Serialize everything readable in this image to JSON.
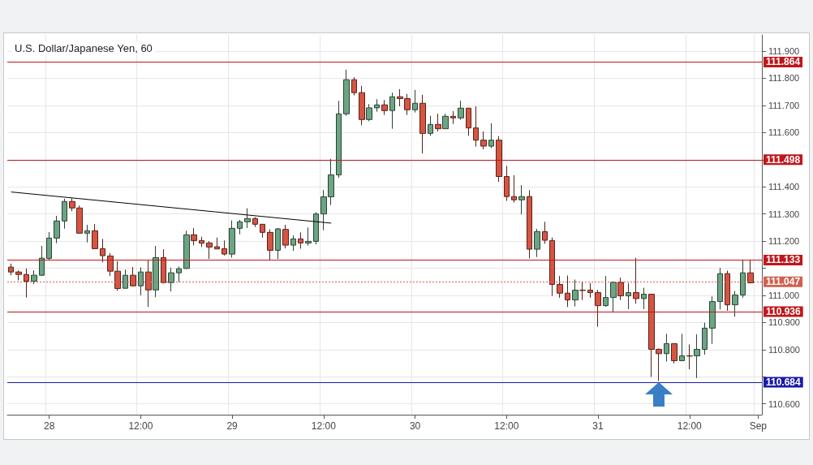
{
  "chart_data": {
    "type": "candlestick",
    "title": "U.S. Dollar/Japanese Yen, 60",
    "categories": [
      null,
      null,
      null,
      null,
      null,
      "28",
      null,
      null,
      null,
      null,
      null,
      null,
      null,
      null,
      null,
      null,
      null,
      "12:00",
      null,
      null,
      null,
      null,
      null,
      null,
      null,
      null,
      null,
      null,
      null,
      "29",
      null,
      null,
      null,
      null,
      null,
      null,
      null,
      null,
      null,
      null,
      null,
      "12:00",
      null,
      null,
      null,
      null,
      null,
      null,
      null,
      null,
      null,
      null,
      null,
      "30",
      null,
      null,
      null,
      null,
      null,
      null,
      null,
      null,
      null,
      null,
      null,
      "12:00",
      null,
      null,
      null,
      null,
      null,
      null,
      null,
      null,
      null,
      null,
      null,
      "31",
      null,
      null,
      null,
      null,
      null,
      null,
      null,
      null,
      null,
      null,
      null,
      "12:00",
      null,
      null,
      null,
      null,
      null,
      null,
      null,
      null,
      "Sep"
    ],
    "ohlc": [
      [
        111.104,
        111.117,
        111.074,
        111.086
      ],
      [
        111.086,
        111.092,
        111.055,
        111.077
      ],
      [
        111.077,
        111.099,
        110.992,
        111.052
      ],
      [
        111.052,
        111.092,
        111.041,
        111.074
      ],
      [
        111.074,
        111.182,
        111.072,
        111.137
      ],
      [
        111.136,
        111.233,
        111.129,
        111.211
      ],
      [
        111.211,
        111.293,
        111.192,
        111.274
      ],
      [
        111.274,
        111.356,
        111.246,
        111.346
      ],
      [
        111.346,
        111.358,
        111.31,
        111.322
      ],
      [
        111.322,
        111.331,
        111.229,
        111.229
      ],
      [
        111.229,
        111.26,
        111.195,
        111.238
      ],
      [
        111.238,
        111.263,
        111.17,
        111.172
      ],
      [
        111.172,
        111.208,
        111.122,
        111.146
      ],
      [
        111.145,
        111.156,
        111.071,
        111.089
      ],
      [
        111.089,
        111.126,
        111.017,
        111.025
      ],
      [
        111.026,
        111.095,
        111.025,
        111.074
      ],
      [
        111.074,
        111.104,
        111.033,
        111.035
      ],
      [
        111.035,
        111.103,
        111.0,
        111.086
      ],
      [
        111.086,
        111.128,
        110.957,
        111.02
      ],
      [
        111.02,
        111.182,
        110.993,
        111.139
      ],
      [
        111.139,
        111.17,
        111.044,
        111.047
      ],
      [
        111.047,
        111.102,
        111.014,
        111.083
      ],
      [
        111.083,
        111.106,
        111.049,
        111.098
      ],
      [
        111.099,
        111.238,
        111.097,
        111.223
      ],
      [
        111.223,
        111.248,
        111.184,
        111.202
      ],
      [
        111.202,
        111.216,
        111.178,
        111.192
      ],
      [
        111.193,
        111.2,
        111.134,
        111.178
      ],
      [
        111.179,
        111.213,
        111.17,
        111.171
      ],
      [
        111.172,
        111.202,
        111.147,
        111.152
      ],
      [
        111.152,
        111.276,
        111.139,
        111.247
      ],
      [
        111.247,
        111.278,
        111.225,
        111.271
      ],
      [
        111.271,
        111.321,
        111.248,
        111.283
      ],
      [
        111.283,
        111.288,
        111.252,
        111.262
      ],
      [
        111.262,
        111.262,
        111.213,
        111.232
      ],
      [
        111.232,
        111.243,
        111.129,
        111.166
      ],
      [
        111.166,
        111.248,
        111.134,
        111.245
      ],
      [
        111.243,
        111.26,
        111.173,
        111.185
      ],
      [
        111.185,
        111.221,
        111.164,
        111.208
      ],
      [
        111.208,
        111.232,
        111.172,
        111.193
      ],
      [
        111.193,
        111.25,
        111.183,
        111.199
      ],
      [
        111.199,
        111.306,
        111.188,
        111.3
      ],
      [
        111.3,
        111.388,
        111.24,
        111.363
      ],
      [
        111.363,
        111.503,
        111.333,
        111.444
      ],
      [
        111.444,
        111.717,
        111.433,
        111.669
      ],
      [
        111.669,
        111.832,
        111.662,
        111.795
      ],
      [
        111.795,
        111.804,
        111.737,
        111.747
      ],
      [
        111.747,
        111.772,
        111.627,
        111.648
      ],
      [
        111.648,
        111.705,
        111.642,
        111.691
      ],
      [
        111.691,
        111.723,
        111.677,
        111.702
      ],
      [
        111.702,
        111.72,
        111.665,
        111.681
      ],
      [
        111.681,
        111.747,
        111.614,
        111.732
      ],
      [
        111.732,
        111.76,
        111.697,
        111.725
      ],
      [
        111.725,
        111.742,
        111.665,
        111.684
      ],
      [
        111.684,
        111.757,
        111.674,
        111.708
      ],
      [
        111.708,
        111.739,
        111.523,
        111.597
      ],
      [
        111.597,
        111.662,
        111.588,
        111.63
      ],
      [
        111.63,
        111.669,
        111.604,
        111.614
      ],
      [
        111.614,
        111.669,
        111.614,
        111.66
      ],
      [
        111.66,
        111.679,
        111.632,
        111.654
      ],
      [
        111.654,
        111.717,
        111.647,
        111.69
      ],
      [
        111.69,
        111.69,
        111.588,
        111.617
      ],
      [
        111.617,
        111.697,
        111.548,
        111.572
      ],
      [
        111.572,
        111.604,
        111.538,
        111.55
      ],
      [
        111.55,
        111.634,
        111.543,
        111.572
      ],
      [
        111.572,
        111.587,
        111.418,
        111.438
      ],
      [
        111.438,
        111.477,
        111.348,
        111.364
      ],
      [
        111.364,
        111.443,
        111.342,
        111.352
      ],
      [
        111.352,
        111.406,
        111.298,
        111.364
      ],
      [
        111.364,
        111.388,
        111.136,
        111.17
      ],
      [
        111.17,
        111.245,
        111.141,
        111.235
      ],
      [
        111.235,
        111.271,
        111.19,
        111.203
      ],
      [
        111.202,
        111.213,
        110.998,
        111.04
      ],
      [
        111.04,
        111.071,
        110.991,
        111.008
      ],
      [
        111.008,
        111.073,
        110.957,
        110.983
      ],
      [
        110.983,
        111.058,
        110.959,
        111.019
      ],
      [
        111.019,
        111.051,
        110.983,
        111.018
      ],
      [
        111.019,
        111.045,
        110.991,
        111.01
      ],
      [
        111.01,
        111.02,
        110.884,
        110.962
      ],
      [
        110.962,
        111.071,
        110.958,
        110.992
      ],
      [
        110.992,
        111.051,
        110.937,
        111.048
      ],
      [
        111.048,
        111.065,
        110.983,
        110.998
      ],
      [
        110.998,
        111.045,
        110.949,
        111.01
      ],
      [
        111.01,
        111.138,
        110.969,
        110.988
      ],
      [
        110.988,
        111.028,
        110.949,
        111.004
      ],
      [
        111.004,
        111.004,
        110.699,
        110.801
      ],
      [
        110.801,
        110.804,
        110.684,
        110.785
      ],
      [
        110.785,
        110.858,
        110.756,
        110.822
      ],
      [
        110.822,
        110.822,
        110.749,
        110.759
      ],
      [
        110.759,
        110.858,
        110.759,
        110.777
      ],
      [
        110.777,
        110.819,
        110.727,
        110.776
      ],
      [
        110.777,
        110.856,
        110.695,
        110.801
      ],
      [
        110.801,
        110.899,
        110.781,
        110.879
      ],
      [
        110.879,
        110.996,
        110.821,
        110.977
      ],
      [
        110.977,
        111.101,
        110.948,
        111.08
      ],
      [
        111.08,
        111.091,
        110.943,
        110.965
      ],
      [
        110.965,
        111.016,
        110.921,
        111.001
      ],
      [
        111.001,
        111.131,
        110.991,
        111.083
      ],
      [
        111.083,
        111.131,
        111.046,
        111.046
      ],
      null
    ],
    "colors": [
      "#d75442",
      "#d75442",
      "#d75442",
      "#6ba583",
      "#6ba583",
      "#6ba583",
      "#6ba583",
      "#6ba583",
      "#d75442",
      "#d75442",
      "#6ba583",
      "#d75442",
      "#d75442",
      "#d75442",
      "#d75442",
      "#6ba583",
      "#d75442",
      "#6ba583",
      "#d75442",
      "#6ba583",
      "#d75442",
      "#6ba583",
      "#6ba583",
      "#6ba583",
      "#d75442",
      "#d75442",
      "#d75442",
      "#d75442",
      "#d75442",
      "#6ba583",
      "#6ba583",
      "#6ba583",
      "#d75442",
      "#d75442",
      "#d75442",
      "#6ba583",
      "#d75442",
      "#6ba583",
      "#d75442",
      "#6ba583",
      "#6ba583",
      "#6ba583",
      "#6ba583",
      "#6ba583",
      "#6ba583",
      "#d75442",
      "#d75442",
      "#6ba583",
      "#6ba583",
      "#d75442",
      "#6ba583",
      "#d75442",
      "#d75442",
      "#6ba583",
      "#d75442",
      "#6ba583",
      "#d75442",
      "#6ba583",
      "#d75442",
      "#6ba583",
      "#d75442",
      "#d75442",
      "#d75442",
      "#6ba583",
      "#d75442",
      "#d75442",
      "#d75442",
      "#6ba583",
      "#d75442",
      "#6ba583",
      "#d75442",
      "#d75442",
      "#d75442",
      "#d75442",
      "#6ba583",
      "#d75442",
      "#d75442",
      "#d75442",
      "#6ba583",
      "#6ba583",
      "#d75442",
      "#6ba583",
      "#d75442",
      "#6ba583",
      "#d75442",
      "#d75442",
      "#6ba583",
      "#d75442",
      "#6ba583",
      "#d75442",
      "#6ba583",
      "#6ba583",
      "#6ba583",
      "#6ba583",
      "#d75442",
      "#6ba583",
      "#6ba583",
      "#d75442",
      null
    ],
    "series": [
      {
        "type": "line",
        "color": "#000000",
        "values": [
          111.381,
          null,
          null,
          null,
          null,
          null,
          null,
          null,
          null,
          null,
          null,
          null,
          null,
          null,
          null,
          null,
          null,
          null,
          null,
          null,
          null,
          null,
          null,
          null,
          null,
          null,
          null,
          null,
          null,
          null,
          null,
          null,
          null,
          null,
          null,
          null,
          null,
          null,
          null,
          null,
          null,
          null,
          111.266,
          null,
          null,
          null,
          null,
          null,
          null,
          null,
          null,
          null,
          null,
          null,
          null,
          null,
          null,
          null,
          null,
          null,
          null,
          null,
          null,
          null,
          null,
          null,
          null,
          null,
          null,
          null,
          null,
          null,
          null,
          null,
          null,
          null,
          null,
          null,
          null,
          null,
          null,
          null,
          null,
          null,
          null,
          null,
          null,
          null,
          null,
          null,
          null,
          null,
          null,
          null,
          null,
          null,
          null,
          null,
          null
        ]
      }
    ],
    "ylim": [
      110.56,
      111.96
    ],
    "yticks": [
      {
        "value": 110.6,
        "label": "110.600"
      },
      {
        "value": 110.7,
        "label": null
      },
      {
        "value": 110.8,
        "label": "110.800"
      },
      {
        "value": 110.9,
        "label": "110.900"
      },
      {
        "value": 111.0,
        "label": "111.000"
      },
      {
        "value": 111.1,
        "label": null
      },
      {
        "value": 111.2,
        "label": "111.200"
      },
      {
        "value": 111.3,
        "label": "111.300"
      },
      {
        "value": 111.4,
        "label": "111.400"
      },
      {
        "value": 111.5,
        "label": null
      },
      {
        "value": 111.6,
        "label": "111.600"
      },
      {
        "value": 111.7,
        "label": "111.700"
      },
      {
        "value": 111.8,
        "label": "111.800"
      },
      {
        "value": 111.9,
        "label": "111.900"
      }
    ],
    "ref_lines": [
      {
        "axis": "y",
        "value": 111.864,
        "label": "111.864",
        "color": "#c0161b",
        "line_style": "solid"
      },
      {
        "axis": "y",
        "value": 111.498,
        "label": "111.498",
        "color": "#c0161b",
        "line_style": "solid"
      },
      {
        "axis": "y",
        "value": 111.133,
        "label": "111.133",
        "color": "#c0161b",
        "line_style": "solid"
      },
      {
        "axis": "y",
        "value": 111.047,
        "label": "111.047",
        "color": "#d0604f",
        "line_style": "dotted"
      },
      {
        "axis": "y",
        "value": 110.936,
        "label": "110.936",
        "color": "#c0161b",
        "line_style": "solid"
      },
      {
        "axis": "y",
        "value": 110.684,
        "label": "110.684",
        "color": "#1a1aa8",
        "line_style": "solid"
      }
    ],
    "grid": true,
    "marker": "none"
  }
}
